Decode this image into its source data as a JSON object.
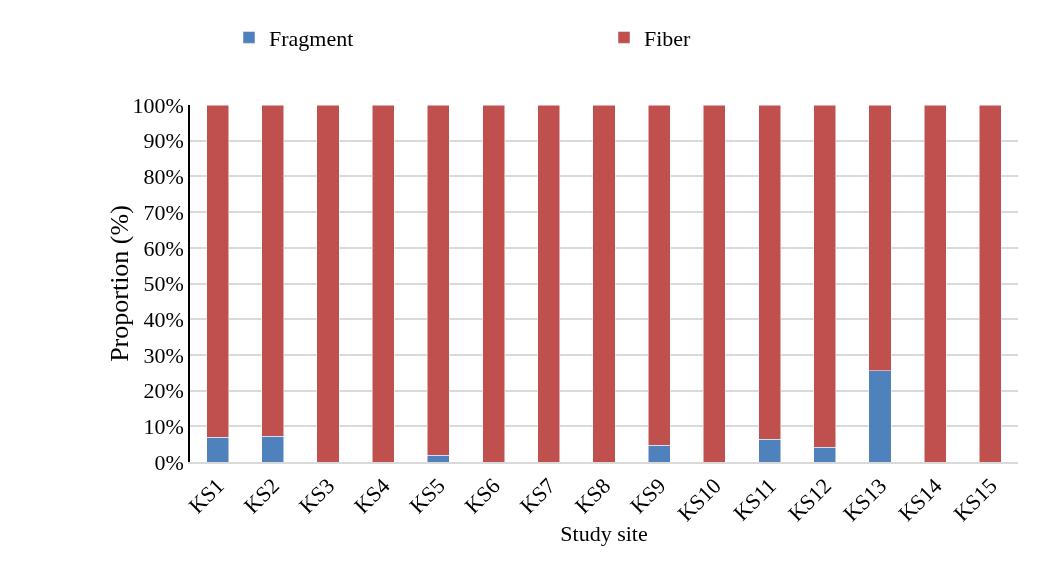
{
  "chart_data": {
    "type": "bar",
    "stacked": true,
    "xlabel": "Study site",
    "ylabel": "Proportion (%)",
    "categories": [
      "KS1",
      "KS2",
      "KS3",
      "KS4",
      "KS5",
      "KS6",
      "KS7",
      "KS8",
      "KS9",
      "KS10",
      "KS11",
      "KS12",
      "KS13",
      "KS14",
      "KS15"
    ],
    "series": [
      {
        "name": "Fragment",
        "color": "#4f81bd",
        "values": [
          7,
          7.2,
          0,
          0,
          1.9,
          0,
          0,
          0,
          4.7,
          0,
          6.4,
          4.1,
          25.5,
          0,
          0
        ]
      },
      {
        "name": "Fiber",
        "color": "#c0504d",
        "values": [
          93,
          92.8,
          100,
          100,
          98.1,
          100,
          100,
          100,
          95.3,
          100,
          93.6,
          95.9,
          74.5,
          100,
          100
        ]
      }
    ],
    "ylim": [
      0,
      100
    ],
    "yticks": [
      {
        "value": 0,
        "label": "0%"
      },
      {
        "value": 10,
        "label": "10%"
      },
      {
        "value": 20,
        "label": "20%"
      },
      {
        "value": 30,
        "label": "30%"
      },
      {
        "value": 40,
        "label": "40%"
      },
      {
        "value": 50,
        "label": "50%"
      },
      {
        "value": 60,
        "label": "60%"
      },
      {
        "value": 70,
        "label": "70%"
      },
      {
        "value": 80,
        "label": "80%"
      },
      {
        "value": 90,
        "label": "90%"
      },
      {
        "value": 100,
        "label": "100%"
      }
    ],
    "grid": "y",
    "legend": "top"
  }
}
